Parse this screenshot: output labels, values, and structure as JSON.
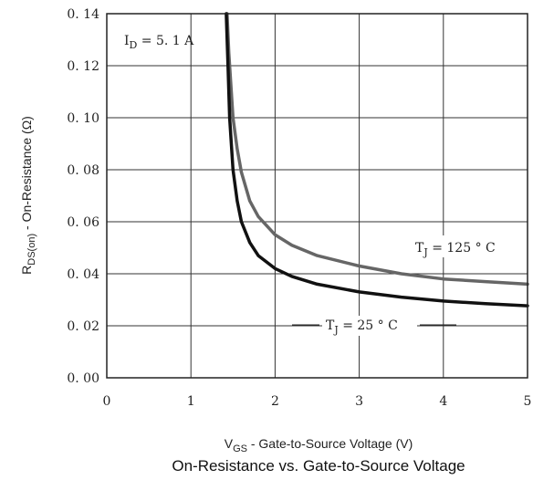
{
  "chart_data": {
    "type": "line",
    "title": "On-Resistance vs. Gate-to-Source Voltage",
    "xlabel": {
      "main": "V",
      "sub": "GS",
      "rest": " - Gate-to-Source Voltage (V)"
    },
    "ylabel": {
      "main": "R",
      "sub": "DS(on)",
      "rest": " - On-Resistance (Ω)"
    },
    "xlim": [
      0,
      5
    ],
    "ylim": [
      0,
      0.14
    ],
    "x_ticks": [
      0,
      1,
      2,
      3,
      4,
      5
    ],
    "x_tick_labels": [
      "0",
      "1",
      "2",
      "3",
      "4",
      "5"
    ],
    "y_ticks": [
      0,
      0.02,
      0.04,
      0.06,
      0.08,
      0.1,
      0.12,
      0.14
    ],
    "y_tick_labels": [
      "0. 00",
      "0. 02",
      "0. 04",
      "0. 06",
      "0. 08",
      "0. 10",
      "0. 12",
      "0. 14"
    ],
    "grid": true,
    "annotations": {
      "id": {
        "main": "I",
        "sub": "D",
        "rest": " = 5. 1 A"
      },
      "tj125": {
        "main": "T",
        "sub": "J",
        "rest": " = 125 ° C"
      },
      "tj25": {
        "main": "T",
        "sub": "J",
        "rest": " = 25 ° C"
      }
    },
    "series": [
      {
        "label_ref": "tj125",
        "color": "#666666",
        "x": [
          1.43,
          1.45,
          1.5,
          1.55,
          1.6,
          1.7,
          1.8,
          2.0,
          2.2,
          2.5,
          3.0,
          3.5,
          4.0,
          4.5,
          5.0
        ],
        "y": [
          0.14,
          0.125,
          0.1,
          0.088,
          0.079,
          0.068,
          0.062,
          0.055,
          0.051,
          0.047,
          0.043,
          0.04,
          0.038,
          0.037,
          0.036
        ]
      },
      {
        "label_ref": "tj25",
        "color": "#111111",
        "x": [
          1.42,
          1.44,
          1.46,
          1.5,
          1.55,
          1.6,
          1.7,
          1.8,
          2.0,
          2.2,
          2.5,
          3.0,
          3.5,
          4.0,
          4.5,
          5.0
        ],
        "y": [
          0.14,
          0.12,
          0.1,
          0.08,
          0.068,
          0.06,
          0.052,
          0.047,
          0.042,
          0.039,
          0.036,
          0.033,
          0.031,
          0.0295,
          0.0285,
          0.0277
        ]
      }
    ]
  }
}
